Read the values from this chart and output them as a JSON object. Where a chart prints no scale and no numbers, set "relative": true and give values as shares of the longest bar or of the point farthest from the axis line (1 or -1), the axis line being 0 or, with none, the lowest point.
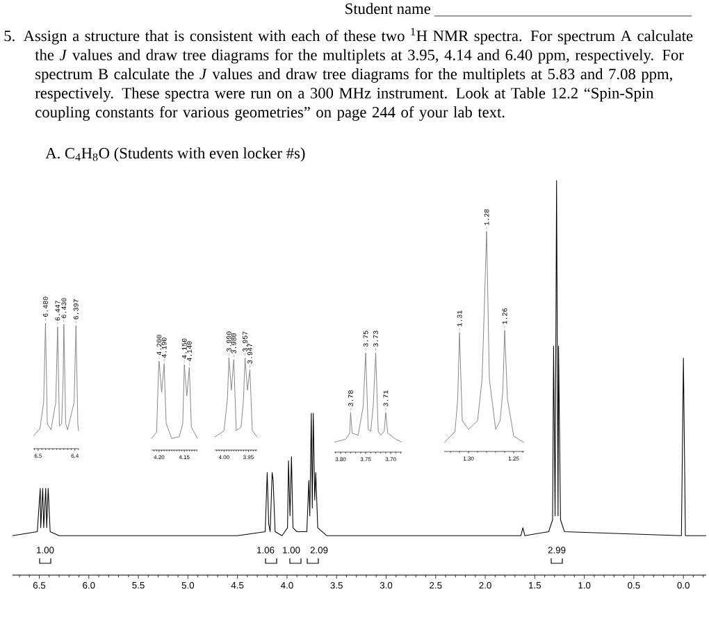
{
  "chart_data": [
    {
      "type": "line",
      "relative": true,
      "title": "A. C$_{4}$H$_{8}$O (Students with even locker #s)",
      "annotations": [
        "Student name",
        "5. Assign a structure that is consistent with each of these two $^{1}$H NMR spectra. For spectrum A calculate the *J* values and draw tree diagrams for the multiplets at 3.95, 4.14 and 6.40 ppm, respectively. For spectrum B calculate the *J* values and draw tree diagrams for the multiplets at 5.83 and 7.08 ppm, respectively. These spectra were run on a 300 MHz instrument. Look at Table 12.2 “Spin-Spin coupling constants for various geometries” on page 244 of your lab text.",
        "1.00",
        "1.06",
        "1.00",
        "2.09",
        "2.99"
      ],
      "xlim": [
        6.77,
        -0.23
      ],
      "xticks": [
        {
          "value": 6.5,
          "label": "6.5"
        },
        {
          "value": 6,
          "label": "6.0"
        },
        {
          "value": 5.5,
          "label": "5.5"
        },
        {
          "value": 5,
          "label": "5.0"
        },
        {
          "value": 4.5,
          "label": "4.5"
        },
        {
          "value": 4,
          "label": "4.0"
        },
        {
          "value": 3.5,
          "label": "3.5"
        },
        {
          "value": 3,
          "label": "3.0"
        },
        {
          "value": 2.5,
          "label": "2.5"
        },
        {
          "value": 2,
          "label": "2.0"
        },
        {
          "value": 1.5,
          "label": "1.5"
        },
        {
          "value": 1,
          "label": "1.0"
        },
        {
          "value": 0.5,
          "label": "0.5"
        },
        {
          "value": 0,
          "label": "0.0"
        },
        {
          "value": 6.7,
          "label": null
        },
        {
          "value": 6.6,
          "label": null
        },
        {
          "value": 6.4,
          "label": null
        },
        {
          "value": 6.3,
          "label": null
        },
        {
          "value": 6.2,
          "label": null
        },
        {
          "value": 6.1,
          "label": null
        },
        {
          "value": 5.9,
          "label": null
        },
        {
          "value": 5.8,
          "label": null
        },
        {
          "value": 5.7,
          "label": null
        },
        {
          "value": 5.6,
          "label": null
        },
        {
          "value": 5.4,
          "label": null
        },
        {
          "value": 5.3,
          "label": null
        },
        {
          "value": 5.2,
          "label": null
        },
        {
          "value": 5.1,
          "label": null
        },
        {
          "value": 4.9,
          "label": null
        },
        {
          "value": 4.8,
          "label": null
        },
        {
          "value": 4.7,
          "label": null
        },
        {
          "value": 4.6,
          "label": null
        },
        {
          "value": 4.4,
          "label": null
        },
        {
          "value": 4.3,
          "label": null
        },
        {
          "value": 4.2,
          "label": null
        },
        {
          "value": 4.1,
          "label": null
        },
        {
          "value": 3.9,
          "label": null
        },
        {
          "value": 3.8,
          "label": null
        },
        {
          "value": 3.7,
          "label": null
        },
        {
          "value": 3.6,
          "label": null
        },
        {
          "value": 3.4,
          "label": null
        },
        {
          "value": 3.3,
          "label": null
        },
        {
          "value": 3.2,
          "label": null
        },
        {
          "value": 3.1,
          "label": null
        },
        {
          "value": 2.9,
          "label": null
        },
        {
          "value": 2.8,
          "label": null
        },
        {
          "value": 2.7,
          "label": null
        },
        {
          "value": 2.6,
          "label": null
        },
        {
          "value": 2.4,
          "label": null
        },
        {
          "value": 2.3,
          "label": null
        },
        {
          "value": 2.2,
          "label": null
        },
        {
          "value": 2.1,
          "label": null
        },
        {
          "value": 1.9,
          "label": null
        },
        {
          "value": 1.8,
          "label": null
        },
        {
          "value": 1.7,
          "label": null
        },
        {
          "value": 1.6,
          "label": null
        },
        {
          "value": 1.4,
          "label": null
        },
        {
          "value": 1.3,
          "label": null
        },
        {
          "value": 1.2,
          "label": null
        },
        {
          "value": 1.1,
          "label": null
        },
        {
          "value": 0.9,
          "label": null
        },
        {
          "value": 0.8,
          "label": null
        },
        {
          "value": 0.7,
          "label": null
        },
        {
          "value": 0.6,
          "label": null
        },
        {
          "value": 0.4,
          "label": null
        },
        {
          "value": 0.3,
          "label": null
        },
        {
          "value": 0.2,
          "label": null
        },
        {
          "value": 0.1,
          "label": null
        },
        {
          "value": -0.1,
          "label": null
        },
        {
          "value": -0.2,
          "label": null
        }
      ],
      "series": [
        {
          "color": "#000000",
          "x": [
            6.77,
            6.52,
            6.49,
            6.485,
            6.465,
            6.455,
            6.435,
            6.425,
            6.41,
            6.39,
            6.3,
            4.5,
            4.22,
            4.2,
            4.185,
            4.17,
            4.15,
            4.14,
            4.12,
            4.05,
            3.995,
            3.985,
            3.97,
            3.955,
            3.94,
            3.9,
            3.8,
            3.78,
            3.77,
            3.755,
            3.745,
            3.735,
            3.72,
            3.71,
            3.69,
            3.6,
            1.64,
            1.62,
            1.6,
            1.36,
            1.32,
            1.31,
            1.295,
            1.28,
            1.265,
            1.26,
            1.24,
            1.2,
            0.02,
            0,
            -0.02,
            -0.23
          ],
          "values": [
            0.1,
            0.11,
            0.22,
            0.12,
            0.22,
            0.12,
            0.22,
            0.12,
            0.22,
            0.11,
            0.1,
            0.1,
            0.11,
            0.26,
            0.13,
            0.11,
            0.26,
            0.24,
            0.11,
            0.1,
            0.12,
            0.29,
            0.15,
            0.3,
            0.12,
            0.11,
            0.11,
            0.24,
            0.15,
            0.41,
            0.17,
            0.41,
            0.19,
            0.26,
            0.12,
            0.1,
            0.1,
            0.12,
            0.1,
            0.11,
            0.14,
            0.58,
            0.15,
            1,
            0.15,
            0.58,
            0.14,
            0.11,
            0.1,
            0.55,
            0.1,
            0.1
          ]
        }
      ]
    },
    {
      "type": "line",
      "relative": true,
      "xlim": [
        6.513,
        6.39
      ],
      "xticks": [
        6.5,
        6.4,
        {
          "value": 6.51,
          "label": null
        },
        {
          "value": 6.49,
          "label": null
        },
        {
          "value": 6.48,
          "label": null
        },
        {
          "value": 6.47,
          "label": null
        },
        {
          "value": 6.46,
          "label": null
        },
        {
          "value": 6.45,
          "label": null
        },
        {
          "value": 6.44,
          "label": null
        },
        {
          "value": 6.43,
          "label": null
        },
        {
          "value": 6.42,
          "label": null
        },
        {
          "value": 6.41,
          "label": null
        },
        {
          "value": 6.39,
          "label": null
        }
      ],
      "annotations": [
        {
          "text": "6.480",
          "x": 6.48,
          "y": 1
        },
        {
          "text": "6.447",
          "x": 6.447,
          "y": 0.97
        },
        {
          "text": "6.430",
          "x": 6.43,
          "y": 0.99
        },
        {
          "text": "6.397",
          "x": 6.397,
          "y": 0.98
        }
      ],
      "series": [
        {
          "color": "#7f7f7f",
          "x": [
            6.513,
            6.495,
            6.485,
            6.48,
            6.475,
            6.465,
            6.452,
            6.447,
            6.442,
            6.436,
            6.432,
            6.43,
            6.425,
            6.42,
            6.402,
            6.397,
            6.392,
            6.39
          ],
          "values": [
            0.1,
            0.16,
            0.37,
            1,
            0.2,
            0.15,
            0.37,
            0.97,
            0.18,
            0.2,
            0.55,
            0.99,
            0.2,
            0.15,
            0.37,
            0.98,
            0.2,
            0.14
          ]
        }
      ]
    },
    {
      "type": "line",
      "relative": true,
      "xlim": [
        4.215,
        4.124
      ],
      "xticks": [
        {
          "value": 4.2,
          "label": "4.20"
        },
        4.15,
        {
          "value": 4.21,
          "label": null
        },
        {
          "value": 4.205,
          "label": null
        },
        {
          "value": 4.195,
          "label": null
        },
        {
          "value": 4.19,
          "label": null
        },
        {
          "value": 4.185,
          "label": null
        },
        {
          "value": 4.18,
          "label": null
        },
        {
          "value": 4.175,
          "label": null
        },
        {
          "value": 4.17,
          "label": null
        },
        {
          "value": 4.165,
          "label": null
        },
        {
          "value": 4.16,
          "label": null
        },
        {
          "value": 4.155,
          "label": null
        },
        {
          "value": 4.145,
          "label": null
        },
        {
          "value": 4.14,
          "label": null
        },
        {
          "value": 4.135,
          "label": null
        },
        {
          "value": 4.13,
          "label": null
        },
        {
          "value": 4.125,
          "label": null
        }
      ],
      "annotations": [
        {
          "text": "4.200",
          "x": 4.2,
          "y": 1
        },
        {
          "text": "4.190",
          "x": 4.19,
          "y": 0.97
        },
        {
          "text": "4.150",
          "x": 4.15,
          "y": 0.96
        },
        {
          "text": "4.140",
          "x": 4.14,
          "y": 0.93
        }
      ],
      "series": [
        {
          "color": "#7f7f7f",
          "x": [
            4.215,
            4.205,
            4.201,
            4.2,
            4.195,
            4.19,
            4.186,
            4.175,
            4.16,
            4.153,
            4.15,
            4.145,
            4.14,
            4.136,
            4.124
          ],
          "values": [
            0.13,
            0.2,
            0.91,
            1,
            0.65,
            0.97,
            0.3,
            0.13,
            0.15,
            0.3,
            0.96,
            0.61,
            0.93,
            0.26,
            0.13
          ]
        }
      ]
    },
    {
      "type": "line",
      "relative": true,
      "xlim": [
        4.019,
        3.932
      ],
      "xticks": [
        {
          "value": 4,
          "label": "4.00"
        },
        3.95,
        {
          "value": 4.015,
          "label": null
        },
        {
          "value": 4.01,
          "label": null
        },
        {
          "value": 4.005,
          "label": null
        },
        {
          "value": 3.995,
          "label": null
        },
        {
          "value": 3.99,
          "label": null
        },
        {
          "value": 3.985,
          "label": null
        },
        {
          "value": 3.98,
          "label": null
        },
        {
          "value": 3.975,
          "label": null
        },
        {
          "value": 3.97,
          "label": null
        },
        {
          "value": 3.965,
          "label": null
        },
        {
          "value": 3.96,
          "label": null
        },
        {
          "value": 3.955,
          "label": null
        },
        {
          "value": 3.945,
          "label": null
        },
        {
          "value": 3.94,
          "label": null
        },
        {
          "value": 3.935,
          "label": null
        }
      ],
      "annotations": [
        {
          "text": "3.990",
          "x": 3.99,
          "y": 1
        },
        {
          "text": "3.980",
          "x": 3.98,
          "y": 0.98
        },
        {
          "text": "3.957",
          "x": 3.957,
          "y": 1
        },
        {
          "text": "3.947",
          "x": 3.947,
          "y": 0.87
        }
      ],
      "series": [
        {
          "color": "#7f7f7f",
          "x": [
            4.019,
            4.0,
            3.993,
            3.99,
            3.985,
            3.98,
            3.975,
            3.965,
            3.96,
            3.957,
            3.952,
            3.947,
            3.942,
            3.932
          ],
          "values": [
            0.14,
            0.21,
            0.56,
            1,
            0.65,
            0.98,
            0.21,
            0.25,
            0.56,
            1,
            0.65,
            0.87,
            0.21,
            0.14
          ]
        }
      ]
    },
    {
      "type": "line",
      "relative": true,
      "xlim": [
        3.8125,
        3.678
      ],
      "xticks": [
        {
          "value": 3.8,
          "label": "3.80"
        },
        3.75,
        {
          "value": 3.7,
          "label": "3.70"
        },
        {
          "value": 3.81,
          "label": null
        },
        {
          "value": 3.79,
          "label": null
        },
        {
          "value": 3.78,
          "label": null
        },
        {
          "value": 3.77,
          "label": null
        },
        {
          "value": 3.76,
          "label": null
        },
        {
          "value": 3.74,
          "label": null
        },
        {
          "value": 3.73,
          "label": null
        },
        {
          "value": 3.72,
          "label": null
        },
        {
          "value": 3.71,
          "label": null
        },
        {
          "value": 3.69,
          "label": null
        },
        {
          "value": 3.68,
          "label": null
        }
      ],
      "annotations": [
        {
          "text": "3.78",
          "x": 3.78,
          "y": 0.4
        },
        {
          "text": "3.75",
          "x": 3.75,
          "y": 1
        },
        {
          "text": "3.73",
          "x": 3.73,
          "y": 1
        },
        {
          "text": "3.71",
          "x": 3.71,
          "y": 0.4
        }
      ],
      "series": [
        {
          "color": "#7f7f7f",
          "x": [
            3.8125,
            3.79,
            3.782,
            3.78,
            3.777,
            3.765,
            3.755,
            3.75,
            3.745,
            3.74,
            3.735,
            3.73,
            3.725,
            3.72,
            3.713,
            3.71,
            3.706,
            3.69,
            3.678
          ],
          "values": [
            0.1,
            0.13,
            0.19,
            0.4,
            0.19,
            0.17,
            0.46,
            1,
            0.23,
            0.21,
            0.46,
            1,
            0.21,
            0.17,
            0.21,
            0.4,
            0.19,
            0.13,
            0.1
          ]
        }
      ]
    },
    {
      "type": "line",
      "relative": true,
      "xlim": [
        1.327,
        1.2385
      ],
      "xticks": [
        {
          "value": 1.3,
          "label": "1.30"
        },
        1.25,
        {
          "value": 1.32,
          "label": null
        },
        {
          "value": 1.31,
          "label": null
        },
        {
          "value": 1.29,
          "label": null
        },
        {
          "value": 1.28,
          "label": null
        },
        {
          "value": 1.27,
          "label": null
        },
        {
          "value": 1.26,
          "label": null
        },
        {
          "value": 1.24,
          "label": null
        }
      ],
      "annotations": [
        {
          "text": "1.31",
          "x": 1.31,
          "y": 0.54
        },
        {
          "text": "1.28",
          "x": 1.28,
          "y": 1
        },
        {
          "text": "1.26",
          "x": 1.26,
          "y": 0.55
        }
      ],
      "series": [
        {
          "color": "#7f7f7f",
          "x": [
            1.327,
            1.315,
            1.312,
            1.31,
            1.307,
            1.3,
            1.29,
            1.285,
            1.28,
            1.277,
            1.27,
            1.265,
            1.262,
            1.26,
            1.257,
            1.25,
            1.2385
          ],
          "values": [
            0.04,
            0.09,
            0.24,
            0.54,
            0.14,
            0.1,
            0.14,
            0.33,
            1,
            0.33,
            0.1,
            0.14,
            0.28,
            0.55,
            0.24,
            0.07,
            0.04
          ]
        }
      ]
    }
  ]
}
